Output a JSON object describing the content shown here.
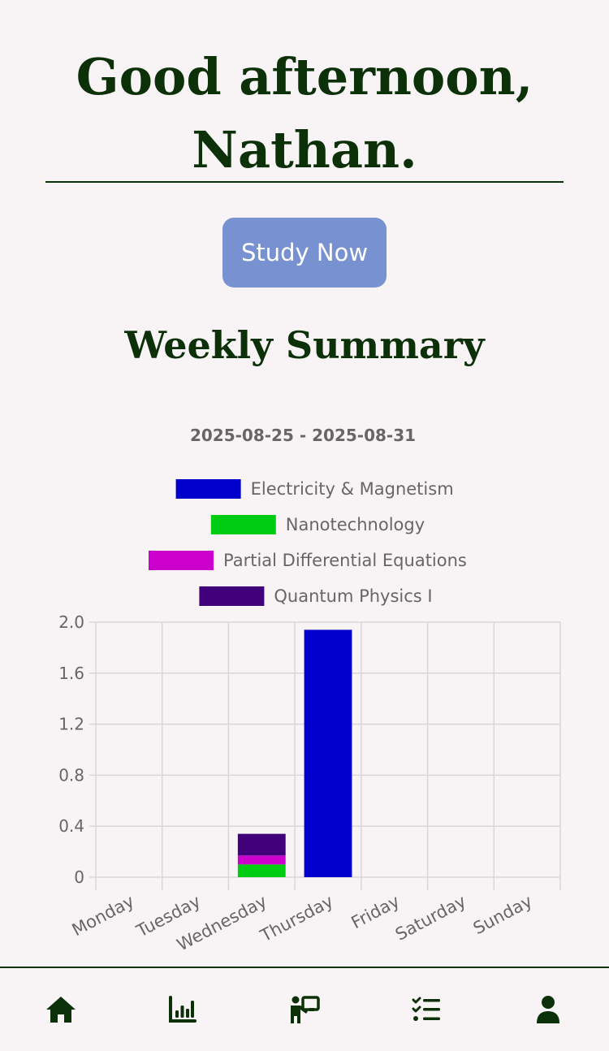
{
  "greeting": {
    "line1": "Good afternoon,",
    "line2": "Nathan."
  },
  "study_button": {
    "label": "Study Now"
  },
  "weekly": {
    "title": "Weekly Summary"
  },
  "chart_data": {
    "type": "bar",
    "stacked": true,
    "title": "2025-08-25 - 2025-08-31",
    "categories": [
      "Monday",
      "Tuesday",
      "Wednesday",
      "Thursday",
      "Friday",
      "Saturday",
      "Sunday"
    ],
    "series": [
      {
        "name": "Electricity & Magnetism",
        "color": "#0000cc",
        "values": [
          0,
          0,
          0,
          1.94,
          0,
          0,
          0
        ]
      },
      {
        "name": "Nanotechnology",
        "color": "#00cc14",
        "values": [
          0,
          0,
          0.1,
          0,
          0,
          0,
          0
        ]
      },
      {
        "name": "Partial Differential Equations",
        "color": "#cc00cc",
        "values": [
          0,
          0,
          0.07,
          0,
          0,
          0,
          0
        ]
      },
      {
        "name": "Quantum Physics I",
        "color": "#40007a",
        "values": [
          0,
          0,
          0.17,
          0,
          0,
          0,
          0
        ]
      }
    ],
    "ylim": [
      0,
      2.0
    ],
    "yticks": [
      "0",
      "0.4",
      "0.8",
      "1.2",
      "1.6",
      "2.0"
    ],
    "legend_position": "top",
    "grid": true
  },
  "nav": {
    "items": [
      {
        "icon": "home-icon"
      },
      {
        "icon": "stats-chart-icon"
      },
      {
        "icon": "teacher-board-icon"
      },
      {
        "icon": "task-list-icon"
      },
      {
        "icon": "profile-icon"
      }
    ]
  },
  "colors": {
    "background": "#f8f4f6",
    "primary_text": "#0c3008",
    "button": "#7891d0"
  }
}
